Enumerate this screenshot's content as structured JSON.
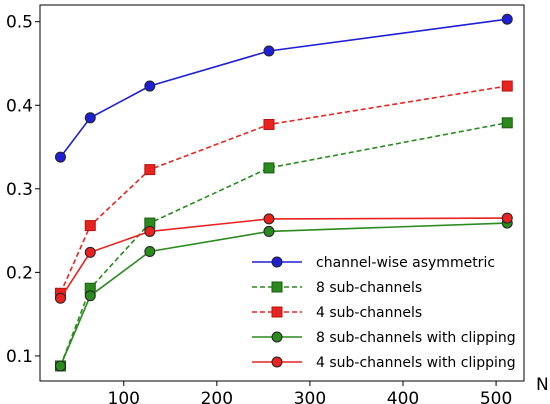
{
  "chart_data": {
    "type": "line",
    "title": "",
    "xlabel": "N",
    "ylabel": "",
    "xlim": [
      10,
      530
    ],
    "ylim": [
      0.07,
      0.52
    ],
    "x_ticks": [
      100,
      200,
      300,
      400,
      500
    ],
    "y_ticks": [
      0.1,
      0.2,
      0.3,
      0.4,
      0.5
    ],
    "x_tick_labels": [
      "100",
      "200",
      "300",
      "400",
      "500"
    ],
    "y_tick_labels": [
      "0.1",
      "0.2",
      "0.3",
      "0.4",
      "0.5"
    ],
    "grid": false,
    "legend_position": "lower-right",
    "x": [
      32,
      64,
      128,
      256,
      512
    ],
    "series": [
      {
        "name": "channel-wise asymmetric",
        "color": "#1f1fd6",
        "marker": "circle",
        "dash": "solid",
        "values": [
          0.338,
          0.385,
          0.423,
          0.465,
          0.503
        ]
      },
      {
        "name": "8 sub-channels",
        "color": "#2a8a1e",
        "marker": "square",
        "dash": "dashed",
        "values": [
          0.088,
          0.181,
          0.259,
          0.325,
          0.379
        ]
      },
      {
        "name": "4 sub-channels",
        "color": "#e8231f",
        "marker": "square",
        "dash": "dashed",
        "values": [
          0.175,
          0.256,
          0.323,
          0.377,
          0.423
        ]
      },
      {
        "name": "8 sub-channels with clipping",
        "color": "#2a8a1e",
        "marker": "circle",
        "dash": "solid",
        "values": [
          0.088,
          0.172,
          0.225,
          0.249,
          0.259
        ]
      },
      {
        "name": "4 sub-channels with clipping",
        "color": "#e8231f",
        "marker": "circle",
        "dash": "solid",
        "values": [
          0.169,
          0.224,
          0.249,
          0.264,
          0.265
        ]
      }
    ]
  }
}
